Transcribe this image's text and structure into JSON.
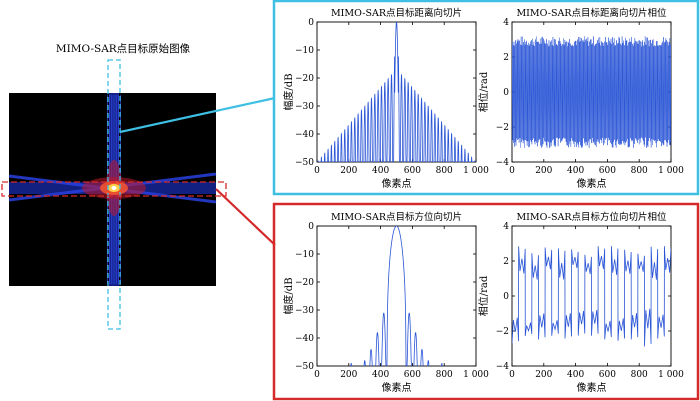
{
  "left_panel": {
    "title": "MIMO-SAR点目标原始图像"
  },
  "colors": {
    "cyan_box": "#3fbfe3",
    "red_box": "#d42a2a",
    "line": "#2a55d6",
    "image_bg": "#000000"
  },
  "chart_data": [
    {
      "type": "line",
      "title": "MIMO-SAR点目标距离向切片",
      "xlabel": "像素点",
      "ylabel": "幅度/dB",
      "xlim": [
        0,
        1000
      ],
      "ylim": [
        -50,
        0
      ],
      "xticks": [
        0,
        200,
        400,
        600,
        800,
        1000
      ],
      "xtick_labels": [
        "0",
        "200",
        "400",
        "600",
        "800",
        "1 000"
      ],
      "yticks": [
        0,
        -10,
        -20,
        -30,
        -40,
        -50
      ],
      "ytick_labels": [
        "0",
        "−10",
        "−20",
        "−30",
        "−40",
        "−50"
      ],
      "series": [
        {
          "peak_x": 500,
          "peak_y": 0,
          "floor_y": -50,
          "edge_envelope_y": -50,
          "near_peak_envelope_y": -18,
          "lobe_spacing_px": 21,
          "shape": "sinc-like comb with slowly decaying sidelobes"
        }
      ]
    },
    {
      "type": "line",
      "title": "MIMO-SAR点目标距离向切片相位",
      "xlabel": "像素点",
      "ylabel": "相位/rad",
      "xlim": [
        0,
        1000
      ],
      "ylim": [
        -4,
        4
      ],
      "xticks": [
        0,
        200,
        400,
        600,
        800,
        1000
      ],
      "xtick_labels": [
        "0",
        "200",
        "400",
        "600",
        "800",
        "1 000"
      ],
      "yticks": [
        4,
        2,
        0,
        -2,
        -4
      ],
      "ytick_labels": [
        "4",
        "2",
        "0",
        "−2",
        "−4"
      ],
      "series": [
        {
          "range": [
            -3.14,
            3.14
          ],
          "shape": "dense phase wrapping"
        }
      ]
    },
    {
      "type": "line",
      "title": "MIMO-SAR点目标方位向切片",
      "xlabel": "像素点",
      "ylabel": "幅度/dB",
      "xlim": [
        0,
        1000
      ],
      "ylim": [
        -50,
        0
      ],
      "xticks": [
        0,
        200,
        400,
        600,
        800,
        1000
      ],
      "xtick_labels": [
        "0",
        "200",
        "400",
        "600",
        "800",
        "1 000"
      ],
      "yticks": [
        0,
        -10,
        -20,
        -30,
        -40,
        -50
      ],
      "ytick_labels": [
        "0",
        "−10",
        "−20",
        "−30",
        "−40",
        "−50"
      ],
      "series": [
        {
          "peak_x": 500,
          "peak_y": 0,
          "mainlobe_halfwidth": 60,
          "sidelobes": [
            {
              "x": 420,
              "y": -31
            },
            {
              "x": 580,
              "y": -31
            },
            {
              "x": 380,
              "y": -38
            },
            {
              "x": 620,
              "y": -38
            },
            {
              "x": 340,
              "y": -44
            },
            {
              "x": 660,
              "y": -44
            },
            {
              "x": 300,
              "y": -48
            },
            {
              "x": 700,
              "y": -48
            },
            {
              "x": 215,
              "y": -49
            },
            {
              "x": 785,
              "y": -49
            }
          ]
        }
      ]
    },
    {
      "type": "line",
      "title": "MIMO-SAR点目标方位向切片相位",
      "xlabel": "像素点",
      "ylabel": "相位/rad",
      "xlim": [
        0,
        1000
      ],
      "ylim": [
        -4,
        4
      ],
      "xticks": [
        0,
        200,
        400,
        600,
        800,
        1000
      ],
      "xtick_labels": [
        "0",
        "200",
        "400",
        "600",
        "800",
        "1 000"
      ],
      "yticks": [
        4,
        2,
        0,
        -2,
        -4
      ],
      "ytick_labels": [
        "4",
        "2",
        "0",
        "−2",
        "−4"
      ],
      "series": [
        {
          "range": [
            -3.1,
            3.1
          ],
          "jumps": 24,
          "shape": "square-like phase alternation"
        }
      ]
    }
  ]
}
